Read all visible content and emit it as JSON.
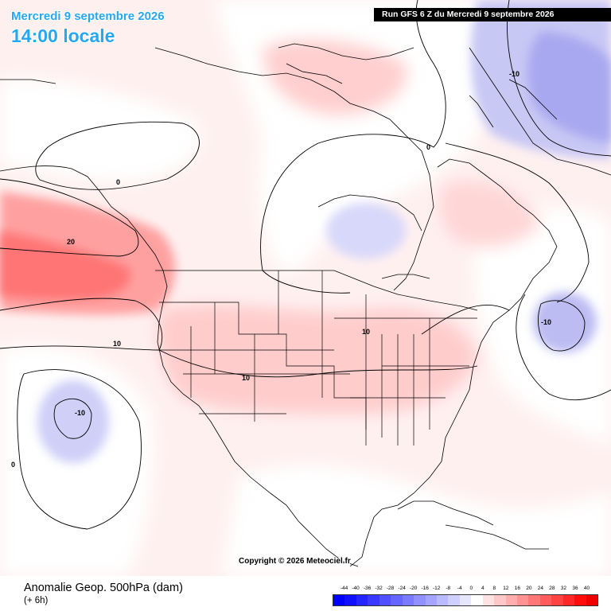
{
  "header": {
    "date_line": "Mercredi 9 septembre 2026",
    "time_line": "14:00 locale",
    "run_info": "Run GFS 6 Z du Mercredi 9 septembre 2026"
  },
  "copyright": "Copyright © 2026 Meteociel.fr",
  "footer": {
    "title": "Anomalie Geop. 500hPa (dam)",
    "subtitle": "(+ 6h)"
  },
  "contour_labels": [
    "0",
    "20",
    "10",
    "-10",
    "0",
    "-10",
    "0",
    "10",
    "10",
    "-10"
  ],
  "legend": {
    "values": [
      "-44",
      "-40",
      "-36",
      "-32",
      "-28",
      "-24",
      "-20",
      "-16",
      "-12",
      "-8",
      "-4",
      "0",
      "4",
      "8",
      "12",
      "16",
      "20",
      "24",
      "28",
      "32",
      "36",
      "40"
    ],
    "colors": [
      "#0000ff",
      "#1010ff",
      "#2525ff",
      "#3a3aff",
      "#5050ff",
      "#6565ff",
      "#7a7aff",
      "#9090ff",
      "#a5a5ff",
      "#babaff",
      "#d0d0ff",
      "#e6e6ff",
      "#ffffff",
      "#ffe3e3",
      "#ffc8c8",
      "#ffadad",
      "#ff9393",
      "#ff7878",
      "#ff5d5d",
      "#ff4242",
      "#ff2828",
      "#ff0d0d",
      "#ee0000"
    ]
  }
}
